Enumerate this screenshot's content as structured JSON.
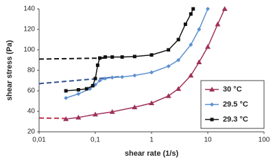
{
  "chart_data": {
    "type": "line",
    "xlabel": "shear rate (1/s)",
    "ylabel": "shear stress (Pa)",
    "xscale": "log",
    "xlim": [
      0.01,
      100
    ],
    "ylim": [
      20,
      140
    ],
    "xticks": [
      {
        "value": 0.01,
        "label": "0,01"
      },
      {
        "value": 0.1,
        "label": "0,1"
      },
      1,
      10,
      100
    ],
    "yticks": [
      20,
      40,
      60,
      80,
      100,
      120,
      140
    ],
    "legend": "lower right",
    "series": [
      {
        "name": "30 °C",
        "color": "#a0305a",
        "marker": "triangle",
        "x": [
          0.03,
          0.05,
          0.1,
          0.2,
          0.5,
          1,
          2,
          3,
          5,
          7,
          10,
          15,
          20
        ],
        "values": [
          32.5,
          34,
          37,
          39.5,
          44,
          48,
          55,
          62,
          75,
          88,
          103,
          125,
          140
        ]
      },
      {
        "name": "29.5 °C",
        "color": "#5b8fd0",
        "marker": "diamond",
        "x": [
          0.03,
          0.05,
          0.08,
          0.1,
          0.12,
          0.15,
          0.2,
          0.3,
          0.5,
          1,
          2,
          3,
          5,
          7,
          10
        ],
        "values": [
          53,
          57,
          62,
          66,
          70,
          72,
          73,
          73.5,
          75,
          78,
          84,
          90,
          105,
          120,
          140
        ]
      },
      {
        "name": "29.3 °C",
        "color": "#111111",
        "marker": "square",
        "x": [
          0.03,
          0.05,
          0.07,
          0.09,
          0.1,
          0.11,
          0.12,
          0.15,
          0.2,
          0.3,
          0.5,
          1,
          2,
          3,
          4,
          5,
          5.5
        ],
        "values": [
          60,
          61,
          62,
          65,
          72,
          85,
          92,
          93,
          93,
          93,
          93.5,
          95,
          100,
          110,
          125,
          135,
          140
        ]
      }
    ],
    "extrapolations": [
      {
        "color": "#c0304a",
        "x": [
          0.01,
          0.03
        ],
        "values": [
          33.5,
          33
        ]
      },
      {
        "color": "#2f4f8f",
        "x": [
          0.01,
          0.3
        ],
        "values": [
          67,
          74
        ]
      },
      {
        "color": "#111111",
        "x": [
          0.01,
          0.15
        ],
        "values": [
          91,
          92
        ]
      }
    ]
  }
}
